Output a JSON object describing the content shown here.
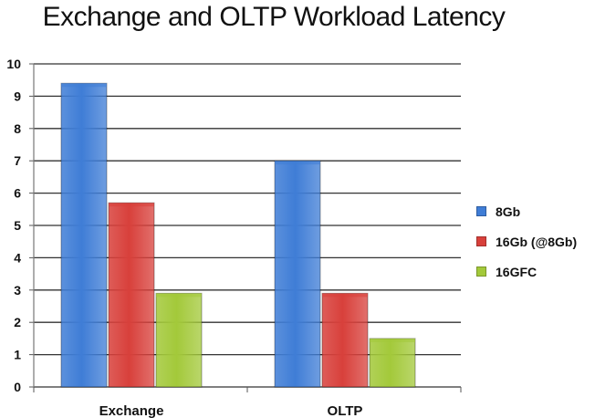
{
  "chart_data": {
    "type": "bar",
    "title": "Exchange and OLTP Workload Latency",
    "xlabel": "",
    "ylabel": "",
    "categories": [
      "Exchange",
      "OLTP"
    ],
    "series": [
      {
        "name": "8Gb",
        "values": [
          9.4,
          7.0
        ],
        "color": "#3f7dd6"
      },
      {
        "name": "16Gb (@8Gb)",
        "values": [
          5.7,
          2.9
        ],
        "color": "#d8403b"
      },
      {
        "name": "16GFC",
        "values": [
          2.9,
          1.5
        ],
        "color": "#a3c93a"
      }
    ],
    "ylim": [
      0,
      10
    ],
    "yticks": [
      0,
      1,
      2,
      3,
      4,
      5,
      6,
      7,
      8,
      9,
      10
    ],
    "grid": true,
    "legend_position": "right"
  }
}
